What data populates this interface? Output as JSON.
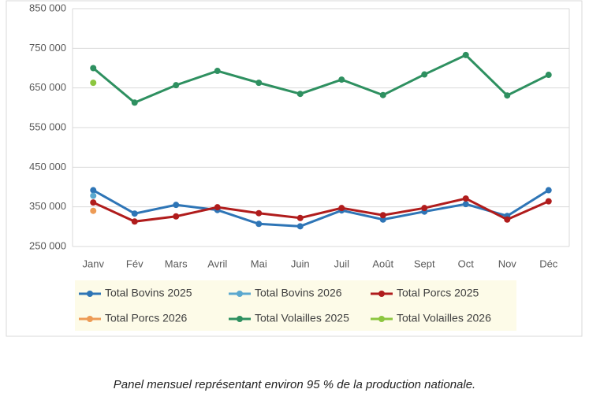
{
  "chart_data": {
    "type": "line",
    "categories": [
      "Janv",
      "Fév",
      "Mars",
      "Avril",
      "Mai",
      "Juin",
      "Juil",
      "Août",
      "Sept",
      "Oct",
      "Nov",
      "Déc"
    ],
    "series": [
      {
        "name": "Total Bovins 2025",
        "color": "#2e75b6",
        "values": [
          392000,
          333000,
          355000,
          342000,
          307000,
          301000,
          341000,
          318000,
          338000,
          357000,
          327000,
          392000
        ]
      },
      {
        "name": "Total Bovins 2026",
        "color": "#5ba8cf",
        "values": [
          378000,
          null,
          null,
          null,
          null,
          null,
          null,
          null,
          null,
          null,
          null,
          null
        ]
      },
      {
        "name": "Total Porcs 2025",
        "color": "#b01c1c",
        "values": [
          361000,
          313000,
          326000,
          349000,
          334000,
          322000,
          347000,
          329000,
          347000,
          371000,
          318000,
          364000
        ]
      },
      {
        "name": "Total Porcs 2026",
        "color": "#ed9b55",
        "values": [
          340000,
          null,
          null,
          null,
          null,
          null,
          null,
          null,
          null,
          null,
          null,
          null
        ]
      },
      {
        "name": "Total Volailles 2025",
        "color": "#2e9060",
        "values": [
          700000,
          613000,
          657000,
          693000,
          663000,
          635000,
          671000,
          632000,
          684000,
          733000,
          631000,
          683000
        ]
      },
      {
        "name": "Total Volailles 2026",
        "color": "#8cc63f",
        "values": [
          663000,
          null,
          null,
          null,
          null,
          null,
          null,
          null,
          null,
          null,
          null,
          null
        ]
      }
    ],
    "ylim": [
      250000,
      850000
    ],
    "yticks": [
      {
        "value": 250000,
        "label": "250 000"
      },
      {
        "value": 350000,
        "label": "350 000"
      },
      {
        "value": 450000,
        "label": "450 000"
      },
      {
        "value": 550000,
        "label": "550 000"
      },
      {
        "value": 650000,
        "label": "650 000"
      },
      {
        "value": 750000,
        "label": "750 000"
      },
      {
        "value": 850000,
        "label": "850 000"
      }
    ],
    "grid": true,
    "legend": "bottom",
    "caption": "Panel mensuel représentant environ 95 % de la production nationale."
  }
}
